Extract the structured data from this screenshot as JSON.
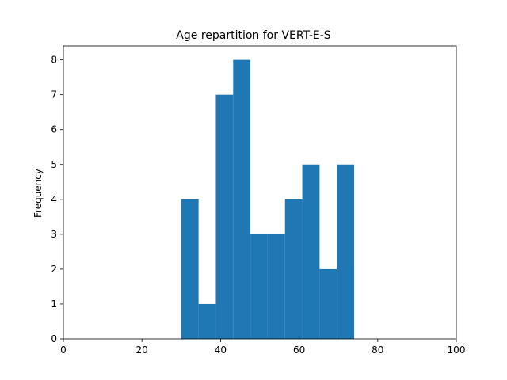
{
  "chart_data": {
    "type": "bar",
    "title": "Age repartition for VERT-E-S",
    "xlabel": "",
    "ylabel": "Frequency",
    "xlim": [
      0,
      100
    ],
    "ylim": [
      0,
      8.4
    ],
    "x_ticks": [
      0,
      20,
      40,
      60,
      80,
      100
    ],
    "y_ticks": [
      0,
      1,
      2,
      3,
      4,
      5,
      6,
      7,
      8
    ],
    "grid": false,
    "bar_color": "#1f77b4",
    "bins": [
      {
        "x0": 30.0,
        "x1": 34.4,
        "value": 4
      },
      {
        "x0": 34.4,
        "x1": 38.8,
        "value": 1
      },
      {
        "x0": 38.8,
        "x1": 43.2,
        "value": 7
      },
      {
        "x0": 43.2,
        "x1": 47.6,
        "value": 8
      },
      {
        "x0": 47.6,
        "x1": 52.0,
        "value": 3
      },
      {
        "x0": 52.0,
        "x1": 56.4,
        "value": 3
      },
      {
        "x0": 56.4,
        "x1": 60.8,
        "value": 4
      },
      {
        "x0": 60.8,
        "x1": 65.2,
        "value": 5
      },
      {
        "x0": 65.2,
        "x1": 69.6,
        "value": 2
      },
      {
        "x0": 69.6,
        "x1": 74.0,
        "value": 5
      }
    ]
  }
}
